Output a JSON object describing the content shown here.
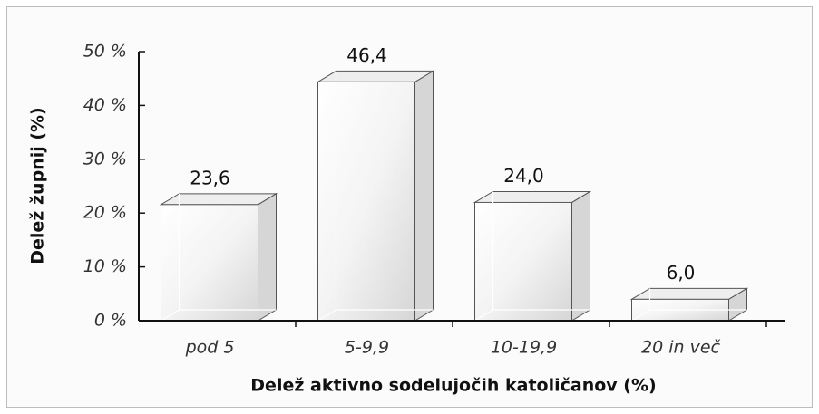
{
  "chart_data": {
    "type": "bar3d",
    "categories": [
      "pod 5",
      "5-9,9",
      "10-19,9",
      "20 in več"
    ],
    "values": [
      23.6,
      46.4,
      24.0,
      6.0
    ],
    "value_labels": [
      "23,6",
      "46,4",
      "24,0",
      "6,0"
    ],
    "color": "#d6d6d6",
    "ylim": [
      0,
      50
    ],
    "yticks": [
      {
        "value": 0,
        "label": "0 %"
      },
      {
        "value": 10,
        "label": "10 %"
      },
      {
        "value": 20,
        "label": "20 %"
      },
      {
        "value": 30,
        "label": "30 %"
      },
      {
        "value": 40,
        "label": "40 %"
      },
      {
        "value": 50,
        "label": "50 %"
      }
    ],
    "xlabel": "Delež aktivno sodelujočih katoličanov (%)",
    "ylabel": "Delež župnij (%)"
  }
}
